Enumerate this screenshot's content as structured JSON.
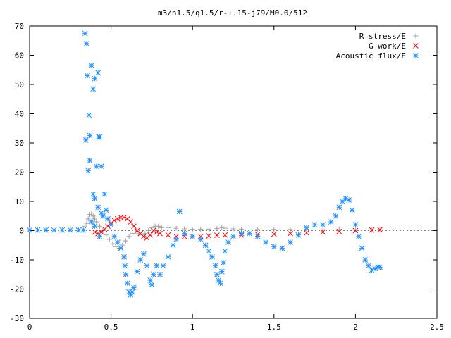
{
  "chart_data": {
    "type": "scatter",
    "title": "m3/n1.5/q1.5/r-+.15-j79/M0.0/512",
    "xlabel": "",
    "ylabel": "",
    "xlim": [
      0,
      2.5
    ],
    "ylim": [
      -30,
      70
    ],
    "x_ticks": [
      "0",
      "0.5",
      "1",
      "1.5",
      "2",
      "2.5"
    ],
    "y_ticks": [
      "70",
      "60",
      "50",
      "40",
      "30",
      "20",
      "10",
      "0",
      "-10",
      "-20",
      "-30"
    ],
    "grid": false,
    "legend_position": "top-right",
    "series": [
      {
        "name": "R stress/E",
        "color": "#a0a0a0",
        "marker": "plus",
        "points": [
          [
            0.34,
            1.5
          ],
          [
            0.35,
            2.5
          ],
          [
            0.36,
            4
          ],
          [
            0.37,
            5.5
          ],
          [
            0.38,
            6
          ],
          [
            0.39,
            5
          ],
          [
            0.4,
            4
          ],
          [
            0.41,
            3
          ],
          [
            0.43,
            1.5
          ],
          [
            0.45,
            0
          ],
          [
            0.47,
            -1.5
          ],
          [
            0.49,
            -3
          ],
          [
            0.51,
            -4.5
          ],
          [
            0.53,
            -5.5
          ],
          [
            0.55,
            -6
          ],
          [
            0.57,
            -5
          ],
          [
            0.59,
            -3.5
          ],
          [
            0.61,
            -2
          ],
          [
            0.63,
            -1
          ],
          [
            0.65,
            -0.5
          ],
          [
            0.67,
            -1
          ],
          [
            0.69,
            -1.5
          ],
          [
            0.71,
            -1
          ],
          [
            0.73,
            0
          ],
          [
            0.75,
            1
          ],
          [
            0.77,
            1.5
          ],
          [
            0.79,
            1.5
          ],
          [
            0.81,
            1
          ],
          [
            0.85,
            1
          ],
          [
            0.9,
            0.8
          ],
          [
            0.95,
            0.6
          ],
          [
            1.0,
            0.5
          ],
          [
            1.05,
            0.5
          ],
          [
            1.1,
            0.5
          ],
          [
            1.15,
            0.7
          ],
          [
            1.18,
            1
          ],
          [
            1.2,
            0.8
          ],
          [
            1.25,
            0.6
          ],
          [
            1.3,
            0.5
          ],
          [
            1.4,
            0.4
          ],
          [
            1.5,
            0.4
          ],
          [
            1.6,
            0.4
          ],
          [
            1.7,
            0.4
          ],
          [
            1.8,
            0.3
          ],
          [
            1.9,
            0.3
          ],
          [
            2.0,
            0.2
          ],
          [
            2.1,
            0.2
          ],
          [
            2.15,
            0.2
          ]
        ]
      },
      {
        "name": "G work/E",
        "color": "#ff0000",
        "marker": "cross",
        "points": [
          [
            0.4,
            -0.5
          ],
          [
            0.42,
            -1
          ],
          [
            0.44,
            -0.5
          ],
          [
            0.46,
            0.5
          ],
          [
            0.48,
            1.5
          ],
          [
            0.5,
            2.5
          ],
          [
            0.52,
            3.5
          ],
          [
            0.54,
            4
          ],
          [
            0.56,
            4.5
          ],
          [
            0.58,
            4.5
          ],
          [
            0.6,
            4
          ],
          [
            0.62,
            3
          ],
          [
            0.64,
            1.5
          ],
          [
            0.66,
            0
          ],
          [
            0.68,
            -1
          ],
          [
            0.7,
            -2
          ],
          [
            0.72,
            -2.5
          ],
          [
            0.74,
            -1.5
          ],
          [
            0.76,
            0
          ],
          [
            0.78,
            -0.5
          ],
          [
            0.8,
            -1
          ],
          [
            0.85,
            -1.5
          ],
          [
            0.9,
            -2
          ],
          [
            0.95,
            -2
          ],
          [
            1.0,
            -2
          ],
          [
            1.05,
            -2
          ],
          [
            1.1,
            -1.8
          ],
          [
            1.15,
            -1.6
          ],
          [
            1.2,
            -1.5
          ],
          [
            1.3,
            -1.5
          ],
          [
            1.4,
            -1.3
          ],
          [
            1.5,
            -1.2
          ],
          [
            1.6,
            -1
          ],
          [
            1.7,
            -0.8
          ],
          [
            1.8,
            -0.5
          ],
          [
            1.9,
            -0.3
          ],
          [
            2.0,
            0
          ],
          [
            2.1,
            0.2
          ],
          [
            2.15,
            0.3
          ]
        ]
      },
      {
        "name": "Acoustic flux/E",
        "color": "#1e90ff",
        "marker": "star",
        "points": [
          [
            0.0,
            0.2
          ],
          [
            0.05,
            0.2
          ],
          [
            0.1,
            0.2
          ],
          [
            0.15,
            0.2
          ],
          [
            0.2,
            0.2
          ],
          [
            0.25,
            0.2
          ],
          [
            0.3,
            0.2
          ],
          [
            0.33,
            0.2
          ],
          [
            0.34,
            67.5
          ],
          [
            0.35,
            64
          ],
          [
            0.355,
            53
          ],
          [
            0.365,
            39.5
          ],
          [
            0.37,
            32.5
          ],
          [
            0.38,
            56.5
          ],
          [
            0.39,
            48.5
          ],
          [
            0.4,
            52
          ],
          [
            0.41,
            22
          ],
          [
            0.42,
            54
          ],
          [
            0.425,
            32
          ],
          [
            0.43,
            32
          ],
          [
            0.44,
            22
          ],
          [
            0.345,
            31
          ],
          [
            0.36,
            20.5
          ],
          [
            0.37,
            24
          ],
          [
            0.39,
            12.5
          ],
          [
            0.4,
            11
          ],
          [
            0.42,
            8
          ],
          [
            0.44,
            6
          ],
          [
            0.46,
            12.5
          ],
          [
            0.38,
            3
          ],
          [
            0.4,
            1.5
          ],
          [
            0.43,
            -2
          ],
          [
            0.45,
            5
          ],
          [
            0.47,
            7
          ],
          [
            0.48,
            4
          ],
          [
            0.5,
            2
          ],
          [
            0.52,
            -2
          ],
          [
            0.54,
            -4
          ],
          [
            0.56,
            -6
          ],
          [
            0.58,
            -9
          ],
          [
            0.585,
            -12
          ],
          [
            0.59,
            -15
          ],
          [
            0.6,
            -18
          ],
          [
            0.61,
            -21
          ],
          [
            0.62,
            -22
          ],
          [
            0.63,
            -21
          ],
          [
            0.64,
            -19.5
          ],
          [
            0.66,
            -14
          ],
          [
            0.68,
            -10
          ],
          [
            0.7,
            -8
          ],
          [
            0.72,
            -12
          ],
          [
            0.74,
            -17
          ],
          [
            0.75,
            -18.5
          ],
          [
            0.76,
            -15
          ],
          [
            0.78,
            -12
          ],
          [
            0.8,
            -15
          ],
          [
            0.82,
            -12
          ],
          [
            0.85,
            -9
          ],
          [
            0.88,
            -5
          ],
          [
            0.9,
            -3
          ],
          [
            0.92,
            6.5
          ],
          [
            0.95,
            -1
          ],
          [
            1.0,
            -2
          ],
          [
            1.05,
            -3
          ],
          [
            1.08,
            -5
          ],
          [
            1.1,
            -7
          ],
          [
            1.12,
            -9
          ],
          [
            1.14,
            -12
          ],
          [
            1.15,
            -15
          ],
          [
            1.16,
            -17
          ],
          [
            1.17,
            -18
          ],
          [
            1.18,
            -14
          ],
          [
            1.19,
            -11
          ],
          [
            1.2,
            -7
          ],
          [
            1.22,
            -4
          ],
          [
            1.25,
            -2
          ],
          [
            1.3,
            -1
          ],
          [
            1.35,
            -1
          ],
          [
            1.4,
            -2
          ],
          [
            1.45,
            -4
          ],
          [
            1.5,
            -5.5
          ],
          [
            1.55,
            -6
          ],
          [
            1.6,
            -4
          ],
          [
            1.65,
            -1.5
          ],
          [
            1.7,
            1
          ],
          [
            1.75,
            2
          ],
          [
            1.8,
            2
          ],
          [
            1.85,
            3
          ],
          [
            1.88,
            5
          ],
          [
            1.9,
            8
          ],
          [
            1.92,
            10
          ],
          [
            1.94,
            11
          ],
          [
            1.96,
            10.5
          ],
          [
            1.98,
            7
          ],
          [
            2.0,
            2
          ],
          [
            2.02,
            -2
          ],
          [
            2.04,
            -6
          ],
          [
            2.06,
            -10
          ],
          [
            2.08,
            -12
          ],
          [
            2.1,
            -13.5
          ],
          [
            2.12,
            -13
          ],
          [
            2.14,
            -12.5
          ],
          [
            2.15,
            -12.5
          ]
        ]
      }
    ]
  }
}
